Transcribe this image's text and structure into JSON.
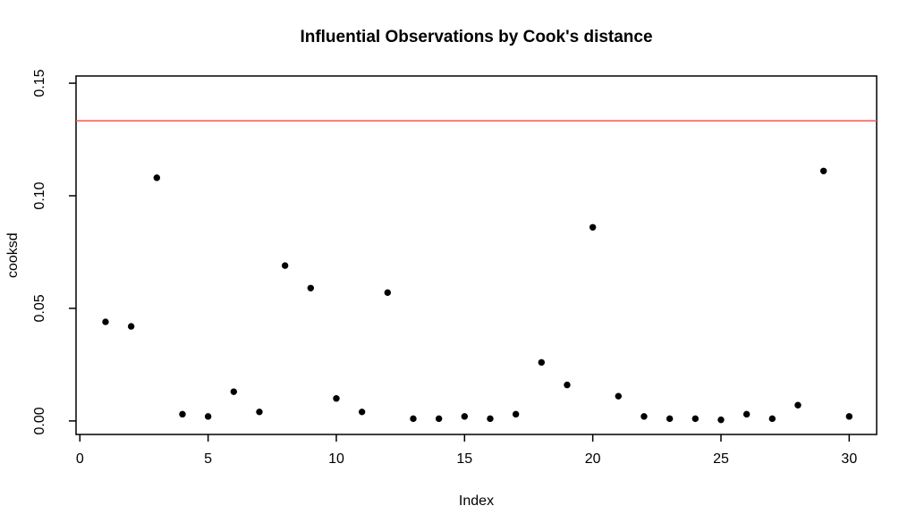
{
  "chart_data": {
    "type": "scatter",
    "title": "Influential Observations by Cook's distance",
    "xlabel": "Index",
    "ylabel": "cooksd",
    "x": [
      1,
      2,
      3,
      4,
      5,
      6,
      7,
      8,
      9,
      10,
      11,
      12,
      13,
      14,
      15,
      16,
      17,
      18,
      19,
      20,
      21,
      22,
      23,
      24,
      25,
      26,
      27,
      28,
      29,
      30
    ],
    "y": [
      0.044,
      0.042,
      0.108,
      0.003,
      0.002,
      0.013,
      0.004,
      0.069,
      0.059,
      0.01,
      0.004,
      0.057,
      0.001,
      0.001,
      0.002,
      0.001,
      0.003,
      0.026,
      0.016,
      0.086,
      0.011,
      0.002,
      0.001,
      0.001,
      0.0005,
      0.003,
      0.001,
      0.007,
      0.111,
      0.002
    ],
    "threshold_line": {
      "value": 0.1333,
      "color": "#ff5252"
    },
    "point_color": "#000000",
    "axis_color": "#000000",
    "background": "#ffffff",
    "x_ticks": {
      "values": [
        0,
        5,
        10,
        15,
        20,
        25,
        30
      ],
      "labels": [
        "0",
        "5",
        "10",
        "15",
        "20",
        "25",
        "30"
      ]
    },
    "y_ticks": {
      "values": [
        0,
        0.05,
        0.1,
        0.15
      ],
      "labels": [
        "0.00",
        "0.05",
        "0.10",
        "0.15"
      ]
    },
    "xlim": [
      -0.15,
      31.07
    ],
    "ylim": [
      -0.006,
      0.1532
    ],
    "grid": false,
    "legend": null
  }
}
